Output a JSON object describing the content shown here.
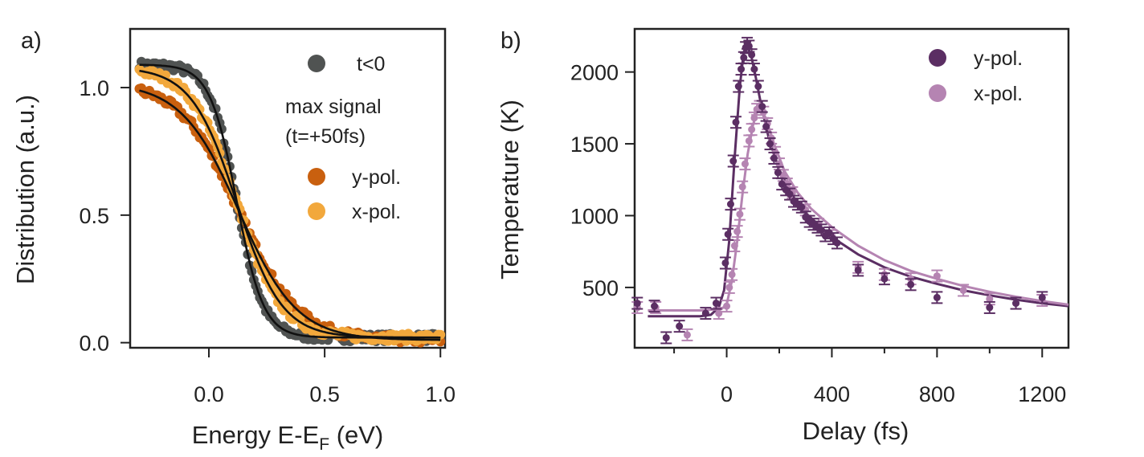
{
  "panel_labels": {
    "a": "a)",
    "b": "b)"
  },
  "chart_data": [
    {
      "type": "scatter",
      "title": "",
      "xlabel": {
        "main": "Energy E-E",
        "sub": "F",
        "unit": "(eV)"
      },
      "ylabel": "Distribution (a.u.)",
      "xlim": [
        -0.34,
        1.02
      ],
      "ylim": [
        -0.02,
        1.23
      ],
      "xticks": [
        0.0,
        0.5,
        1.0
      ],
      "xtick_labels": [
        "0.0",
        "0.5",
        "1.0"
      ],
      "yticks": [
        0.0,
        0.5,
        1.0
      ],
      "ytick_labels": [
        "0.0",
        "0.5",
        "1.0"
      ],
      "legend_header": [
        "max signal",
        "(t=+50fs)"
      ],
      "series": [
        {
          "name": "t<0",
          "color": "#505352",
          "model": {
            "kind": "fermi",
            "A": 1.09,
            "mu": 0.12,
            "kT": 0.058,
            "c": 0.02
          },
          "x_range": [
            -0.3,
            1.0
          ]
        },
        {
          "name": "y-pol.",
          "color": "#c9600f",
          "model": {
            "kind": "fermi",
            "A": 1.02,
            "mu": 0.13,
            "kT": 0.125,
            "c": 0.01
          },
          "x_range": [
            -0.3,
            1.0
          ]
        },
        {
          "name": "x-pol.",
          "color": "#f2a83c",
          "model": {
            "kind": "fermi",
            "A": 1.08,
            "mu": 0.12,
            "kT": 0.098,
            "c": 0.02
          },
          "x_range": [
            -0.3,
            1.0
          ]
        }
      ],
      "fit_line_color": "#111111"
    },
    {
      "type": "scatter",
      "title": "",
      "xlabel": "Delay (fs)",
      "ylabel": "Temperature (K)",
      "xlim": [
        -350,
        1300
      ],
      "ylim": [
        80,
        2300
      ],
      "xticks": [
        0,
        400,
        800,
        1200
      ],
      "xtick_labels": [
        "0",
        "400",
        "800",
        "1200"
      ],
      "xminor": [
        -200,
        200,
        600,
        1000
      ],
      "yticks": [
        500,
        1000,
        1500,
        2000
      ],
      "ytick_labels": [
        "500",
        "1000",
        "1500",
        "2000"
      ],
      "series": [
        {
          "name": "y-pol.",
          "color": "#5b2e63",
          "points": [
            [
              -340,
              390
            ],
            [
              -275,
              370
            ],
            [
              -230,
              150
            ],
            [
              -180,
              230
            ],
            [
              -80,
              320
            ],
            [
              -40,
              390
            ],
            [
              -5,
              670
            ],
            [
              5,
              870
            ],
            [
              15,
              1080
            ],
            [
              25,
              1380
            ],
            [
              35,
              1650
            ],
            [
              45,
              1900
            ],
            [
              55,
              2020
            ],
            [
              65,
              2100
            ],
            [
              72,
              2170
            ],
            [
              78,
              2200
            ],
            [
              85,
              2180
            ],
            [
              95,
              2120
            ],
            [
              105,
              2020
            ],
            [
              120,
              1900
            ],
            [
              135,
              1760
            ],
            [
              150,
              1620
            ],
            [
              165,
              1500
            ],
            [
              180,
              1400
            ],
            [
              195,
              1300
            ],
            [
              210,
              1220
            ],
            [
              225,
              1180
            ],
            [
              240,
              1150
            ],
            [
              255,
              1100
            ],
            [
              270,
              1080
            ],
            [
              285,
              1060
            ],
            [
              300,
              990
            ],
            [
              315,
              960
            ],
            [
              330,
              940
            ],
            [
              345,
              920
            ],
            [
              360,
              900
            ],
            [
              375,
              860
            ],
            [
              390,
              880
            ],
            [
              405,
              840
            ],
            [
              420,
              810
            ],
            [
              500,
              620
            ],
            [
              600,
              560
            ],
            [
              700,
              520
            ],
            [
              800,
              430
            ],
            [
              1000,
              360
            ],
            [
              1100,
              390
            ],
            [
              1200,
              430
            ]
          ],
          "fit": [
            [
              -300,
              300
            ],
            [
              -100,
              300
            ],
            [
              -60,
              310
            ],
            [
              -30,
              360
            ],
            [
              -10,
              480
            ],
            [
              10,
              830
            ],
            [
              30,
              1400
            ],
            [
              50,
              1900
            ],
            [
              65,
              2140
            ],
            [
              80,
              2180
            ],
            [
              95,
              2100
            ],
            [
              110,
              1970
            ],
            [
              130,
              1780
            ],
            [
              160,
              1540
            ],
            [
              200,
              1320
            ],
            [
              250,
              1140
            ],
            [
              300,
              1020
            ],
            [
              400,
              850
            ],
            [
              500,
              730
            ],
            [
              600,
              640
            ],
            [
              700,
              575
            ],
            [
              800,
              525
            ],
            [
              900,
              480
            ],
            [
              1000,
              445
            ],
            [
              1100,
              415
            ],
            [
              1200,
              390
            ],
            [
              1300,
              370
            ]
          ]
        },
        {
          "name": "x-pol.",
          "color": "#b584b2",
          "points": [
            [
              -340,
              360
            ],
            [
              -270,
              360
            ],
            [
              -150,
              170
            ],
            [
              -30,
              320
            ],
            [
              0,
              370
            ],
            [
              10,
              500
            ],
            [
              20,
              590
            ],
            [
              30,
              790
            ],
            [
              40,
              890
            ],
            [
              50,
              1010
            ],
            [
              60,
              1200
            ],
            [
              70,
              1360
            ],
            [
              85,
              1520
            ],
            [
              95,
              1600
            ],
            [
              105,
              1680
            ],
            [
              115,
              1740
            ],
            [
              125,
              1760
            ],
            [
              140,
              1720
            ],
            [
              155,
              1640
            ],
            [
              170,
              1540
            ],
            [
              185,
              1440
            ],
            [
              200,
              1360
            ],
            [
              215,
              1280
            ],
            [
              230,
              1220
            ],
            [
              250,
              1160
            ],
            [
              300,
              1040
            ],
            [
              350,
              940
            ],
            [
              400,
              860
            ],
            [
              500,
              640
            ],
            [
              600,
              590
            ],
            [
              700,
              560
            ],
            [
              800,
              580
            ],
            [
              900,
              480
            ],
            [
              1000,
              420
            ],
            [
              1100,
              390
            ],
            [
              1200,
              410
            ]
          ],
          "fit": [
            [
              -300,
              340
            ],
            [
              -100,
              340
            ],
            [
              -20,
              350
            ],
            [
              0,
              380
            ],
            [
              20,
              550
            ],
            [
              40,
              820
            ],
            [
              60,
              1150
            ],
            [
              80,
              1430
            ],
            [
              100,
              1630
            ],
            [
              115,
              1730
            ],
            [
              130,
              1760
            ],
            [
              150,
              1670
            ],
            [
              180,
              1500
            ],
            [
              220,
              1310
            ],
            [
              270,
              1160
            ],
            [
              320,
              1050
            ],
            [
              400,
              920
            ],
            [
              500,
              790
            ],
            [
              600,
              690
            ],
            [
              700,
              615
            ],
            [
              800,
              560
            ],
            [
              900,
              510
            ],
            [
              1000,
              470
            ],
            [
              1100,
              435
            ],
            [
              1200,
              405
            ],
            [
              1300,
              380
            ]
          ]
        }
      ]
    }
  ]
}
